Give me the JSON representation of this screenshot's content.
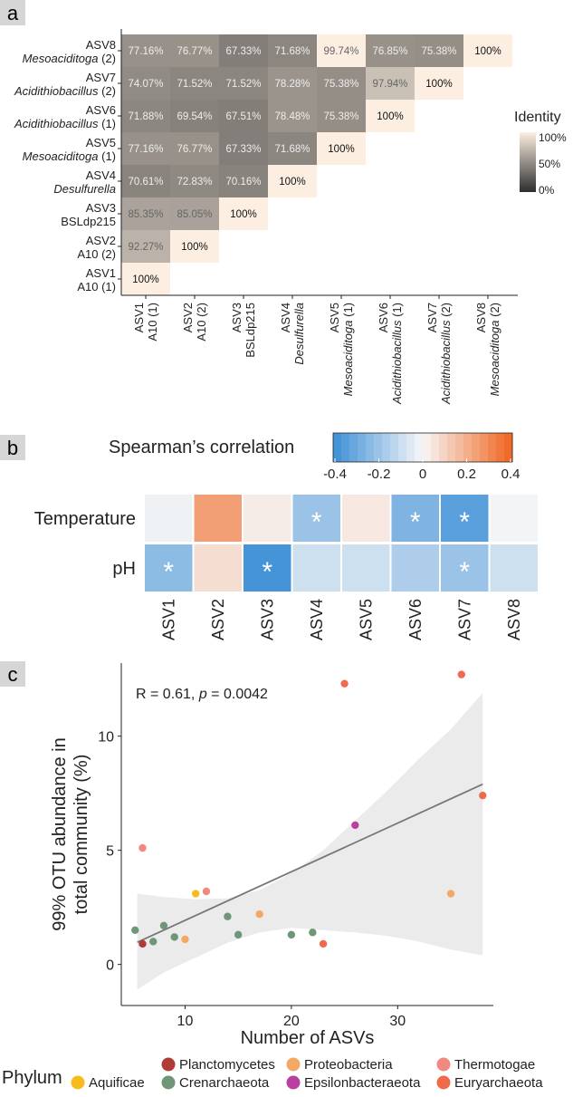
{
  "panels": {
    "a": "a",
    "b": "b",
    "c": "c"
  },
  "chart_data": [
    {
      "type": "heatmap",
      "panel": "a",
      "title": "",
      "row_labels": [
        {
          "asv": "ASV1",
          "taxon": "A10 (1)",
          "italic_part": "",
          "rest": "A10 (1)"
        },
        {
          "asv": "ASV2",
          "taxon": "A10 (2)",
          "italic_part": "",
          "rest": "A10 (2)"
        },
        {
          "asv": "ASV3",
          "taxon": "BSLdp215",
          "italic_part": "",
          "rest": "BSLdp215"
        },
        {
          "asv": "ASV4",
          "taxon": "Desulfurella",
          "italic_part": "Desulfurella",
          "rest": ""
        },
        {
          "asv": "ASV5",
          "taxon": "Mesoaciditoga (1)",
          "italic_part": "Mesoaciditoga",
          "rest": " (1)"
        },
        {
          "asv": "ASV6",
          "taxon": "Acidithiobacillus (1)",
          "italic_part": "Acidithiobacillus",
          "rest": " (1)"
        },
        {
          "asv": "ASV7",
          "taxon": "Acidithiobacillus (2)",
          "italic_part": "Acidithiobacillus",
          "rest": " (2)"
        },
        {
          "asv": "ASV8",
          "taxon": "Mesoaciditoga (2)",
          "italic_part": "Mesoaciditoga",
          "rest": " (2)"
        }
      ],
      "matrix": [
        [
          100,
          null,
          null,
          null,
          null,
          null,
          null,
          null
        ],
        [
          92.27,
          100,
          null,
          null,
          null,
          null,
          null,
          null
        ],
        [
          85.35,
          85.05,
          100,
          null,
          null,
          null,
          null,
          null
        ],
        [
          70.61,
          72.83,
          70.16,
          100,
          null,
          null,
          null,
          null
        ],
        [
          77.16,
          76.77,
          67.33,
          71.68,
          100,
          null,
          null,
          null
        ],
        [
          71.88,
          69.54,
          67.51,
          78.48,
          75.38,
          100,
          null,
          null
        ],
        [
          74.07,
          71.52,
          71.52,
          78.28,
          75.38,
          97.94,
          100,
          null
        ],
        [
          77.16,
          76.77,
          67.33,
          71.68,
          99.74,
          76.85,
          75.38,
          100
        ]
      ],
      "cell_labels": [
        [
          "100%"
        ],
        [
          "92.27%",
          "100%"
        ],
        [
          "85.35%",
          "85.05%",
          "100%"
        ],
        [
          "70.61%",
          "72.83%",
          "70.16%",
          "100%"
        ],
        [
          "77.16%",
          "76.77%",
          "67.33%",
          "71.68%",
          "100%"
        ],
        [
          "71.88%",
          "69.54%",
          "67.51%",
          "78.48%",
          "75.38%",
          "100%"
        ],
        [
          "74.07%",
          "71.52%",
          "71.52%",
          "78.28%",
          "75.38%",
          "97.94%",
          "100%"
        ],
        [
          "77.16%",
          "76.77%",
          "67.33%",
          "71.68%",
          "99.74%",
          "76.85%",
          "75.38%",
          "100%"
        ]
      ],
      "legend": {
        "title": "Identity",
        "ticks": [
          "100%",
          "50%",
          "0%"
        ],
        "range": [
          0,
          100
        ],
        "low_color": "#2e2e2e",
        "high_color": "#fcefe2"
      }
    },
    {
      "type": "heatmap",
      "panel": "b",
      "legend_title": "Spearman’s correlation",
      "legend_ticks": [
        "-0.4",
        "-0.2",
        "0",
        "0.2",
        "0.4"
      ],
      "range": [
        -0.4,
        0.4
      ],
      "low_color": "#3d8fd6",
      "mid_color": "#f7f7f7",
      "high_color": "#f0641e",
      "rows": [
        "Temperature",
        "pH"
      ],
      "columns": [
        "ASV1",
        "ASV2",
        "ASV3",
        "ASV4",
        "ASV5",
        "ASV6",
        "ASV7",
        "ASV8"
      ],
      "values": [
        [
          -0.02,
          0.24,
          0.03,
          -0.2,
          0.04,
          -0.26,
          -0.34,
          -0.01
        ],
        [
          -0.23,
          0.07,
          -0.38,
          -0.09,
          -0.09,
          -0.16,
          -0.2,
          -0.09
        ]
      ],
      "significance_mark": "*",
      "significant": [
        [
          false,
          false,
          false,
          true,
          false,
          true,
          true,
          false
        ],
        [
          true,
          false,
          true,
          false,
          false,
          false,
          true,
          false
        ]
      ]
    },
    {
      "type": "scatter",
      "panel": "c",
      "xlabel": "Number of ASVs",
      "ylabel_lines": [
        "99% OTU abundance in",
        "total community (%)"
      ],
      "xlim": [
        4,
        39
      ],
      "ylim": [
        -1.8,
        13.2
      ],
      "xticks": [
        10,
        20,
        30
      ],
      "yticks": [
        0,
        5,
        10
      ],
      "annotation": {
        "prefix": "R = 0.61, ",
        "p_symbol": "p",
        "suffix": " = 0.0042"
      },
      "regression": {
        "slope": 0.213,
        "intercept": -0.2,
        "x_range": [
          5.5,
          38
        ]
      },
      "confidence_band": {
        "x": [
          5.5,
          8,
          11,
          14,
          17,
          20,
          23,
          26,
          29,
          32,
          35,
          38
        ],
        "upper": [
          3.1,
          2.95,
          2.85,
          2.9,
          3.25,
          4.0,
          5.0,
          6.3,
          7.6,
          9.0,
          10.3,
          11.9
        ],
        "lower": [
          -1.1,
          -0.35,
          0.3,
          0.95,
          1.4,
          1.6,
          1.5,
          1.4,
          1.25,
          1.0,
          0.65,
          0.4
        ]
      },
      "points": [
        {
          "x": 5.3,
          "y": 1.5,
          "phylum": "Crenarchaeota"
        },
        {
          "x": 6.0,
          "y": 0.9,
          "phylum": "Planctomycetes"
        },
        {
          "x": 6.0,
          "y": 5.1,
          "phylum": "Thermotogae"
        },
        {
          "x": 7.0,
          "y": 1.0,
          "phylum": "Crenarchaeota"
        },
        {
          "x": 8.0,
          "y": 1.7,
          "phylum": "Crenarchaeota"
        },
        {
          "x": 9.0,
          "y": 1.2,
          "phylum": "Crenarchaeota"
        },
        {
          "x": 10.0,
          "y": 1.1,
          "phylum": "Proteobacteria"
        },
        {
          "x": 11.0,
          "y": 3.1,
          "phylum": "Aquificae"
        },
        {
          "x": 12.0,
          "y": 3.2,
          "phylum": "Thermotogae"
        },
        {
          "x": 14.0,
          "y": 2.1,
          "phylum": "Crenarchaeota"
        },
        {
          "x": 15.0,
          "y": 1.3,
          "phylum": "Crenarchaeota"
        },
        {
          "x": 17.0,
          "y": 2.2,
          "phylum": "Proteobacteria"
        },
        {
          "x": 20.0,
          "y": 1.3,
          "phylum": "Crenarchaeota"
        },
        {
          "x": 22.0,
          "y": 1.4,
          "phylum": "Crenarchaeota"
        },
        {
          "x": 23.0,
          "y": 0.9,
          "phylum": "Euryarchaeota"
        },
        {
          "x": 25.0,
          "y": 12.3,
          "phylum": "Euryarchaeota"
        },
        {
          "x": 26.0,
          "y": 6.1,
          "phylum": "Epsilonbacteraeota"
        },
        {
          "x": 35.0,
          "y": 3.1,
          "phylum": "Proteobacteria"
        },
        {
          "x": 36.0,
          "y": 12.7,
          "phylum": "Euryarchaeota"
        },
        {
          "x": 38.0,
          "y": 7.4,
          "phylum": "Euryarchaeota"
        }
      ],
      "legend": {
        "title": "Phylum",
        "entries": [
          {
            "name": "Aquificae",
            "color": "#f7bb1d"
          },
          {
            "name": "Planctomycetes",
            "color": "#b03a35"
          },
          {
            "name": "Crenarchaeota",
            "color": "#6e9677"
          },
          {
            "name": "Proteobacteria",
            "color": "#f3a865"
          },
          {
            "name": "Epsilonbacteraeota",
            "color": "#bb3f9e"
          },
          {
            "name": "Thermotogae",
            "color": "#f08a80"
          },
          {
            "name": "Euryarchaeota",
            "color": "#ef6b4c"
          }
        ]
      }
    }
  ]
}
